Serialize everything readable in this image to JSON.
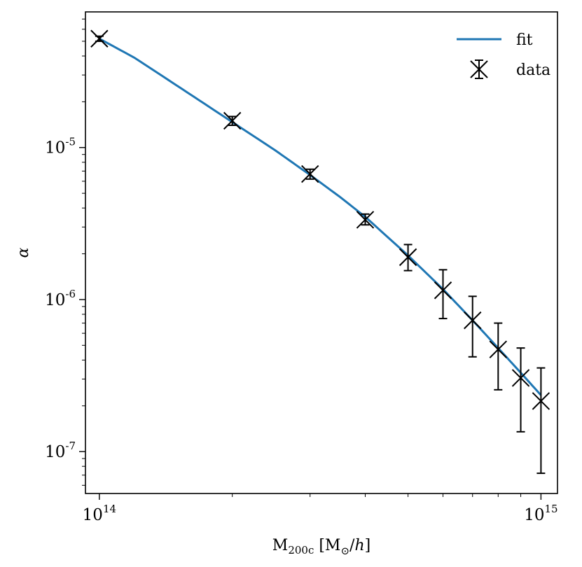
{
  "chart_data": {
    "type": "scatter",
    "xscale": "log",
    "yscale": "log",
    "xlim": [
      93000000000000.0,
      1090000000000000.0
    ],
    "ylim": [
      5.3e-08,
      7.8e-05
    ],
    "xticks": [
      {
        "value": 100000000000000.0,
        "base": "10",
        "exp": "14"
      },
      {
        "value": 1000000000000000.0,
        "base": "10",
        "exp": "15"
      }
    ],
    "yticks": [
      {
        "value": 1e-05,
        "base": "10",
        "exp": "-5"
      },
      {
        "value": 1e-06,
        "base": "10",
        "exp": "-6"
      },
      {
        "value": 1e-07,
        "base": "10",
        "exp": "-7"
      }
    ],
    "xlabel": {
      "main": "M",
      "sub": "200c",
      "rest": " [M",
      "odot": "⊙",
      "slash": "/",
      "h": "h",
      "close": "]"
    },
    "ylabel": "α",
    "legend": {
      "position": "top-right",
      "fit_label": "fit",
      "data_label": "data"
    },
    "series": [
      {
        "name": "fit",
        "kind": "line",
        "color": "#1f77b4",
        "x": [
          100000000000000.0,
          120000000000000.0,
          150000000000000.0,
          200000000000000.0,
          250000000000000.0,
          300000000000000.0,
          350000000000000.0,
          400000000000000.0,
          500000000000000.0,
          600000000000000.0,
          700000000000000.0,
          800000000000000.0,
          900000000000000.0,
          1000000000000000.0
        ],
        "y": [
          5.2e-05,
          3.9e-05,
          2.55e-05,
          1.47e-05,
          9.6e-06,
          6.6e-06,
          4.75e-06,
          3.5e-06,
          1.95e-06,
          1.17e-06,
          7.3e-07,
          4.8e-07,
          3.3e-07,
          2.35e-07
        ]
      },
      {
        "name": "data",
        "kind": "errorbar",
        "color": "#000000",
        "x": [
          100000000000000.0,
          200000000000000.0,
          300000000000000.0,
          400000000000000.0,
          500000000000000.0,
          600000000000000.0,
          700000000000000.0,
          800000000000000.0,
          900000000000000.0,
          1000000000000000.0
        ],
        "y": [
          5.2e-05,
          1.5e-05,
          6.7e-06,
          3.35e-06,
          1.9e-06,
          1.15e-06,
          7.3e-07,
          4.7e-07,
          3.05e-07,
          2.15e-07
        ],
        "yerr_low": [
          5e-05,
          1.4e-05,
          6.2e-06,
          3.1e-06,
          1.55e-06,
          7.5e-07,
          4.2e-07,
          2.55e-07,
          1.35e-07,
          7.2e-08
        ],
        "yerr_high": [
          5.4e-05,
          1.6e-05,
          7.2e-06,
          3.65e-06,
          2.3e-06,
          1.57e-06,
          1.05e-06,
          7e-07,
          4.8e-07,
          3.55e-07
        ]
      }
    ]
  }
}
